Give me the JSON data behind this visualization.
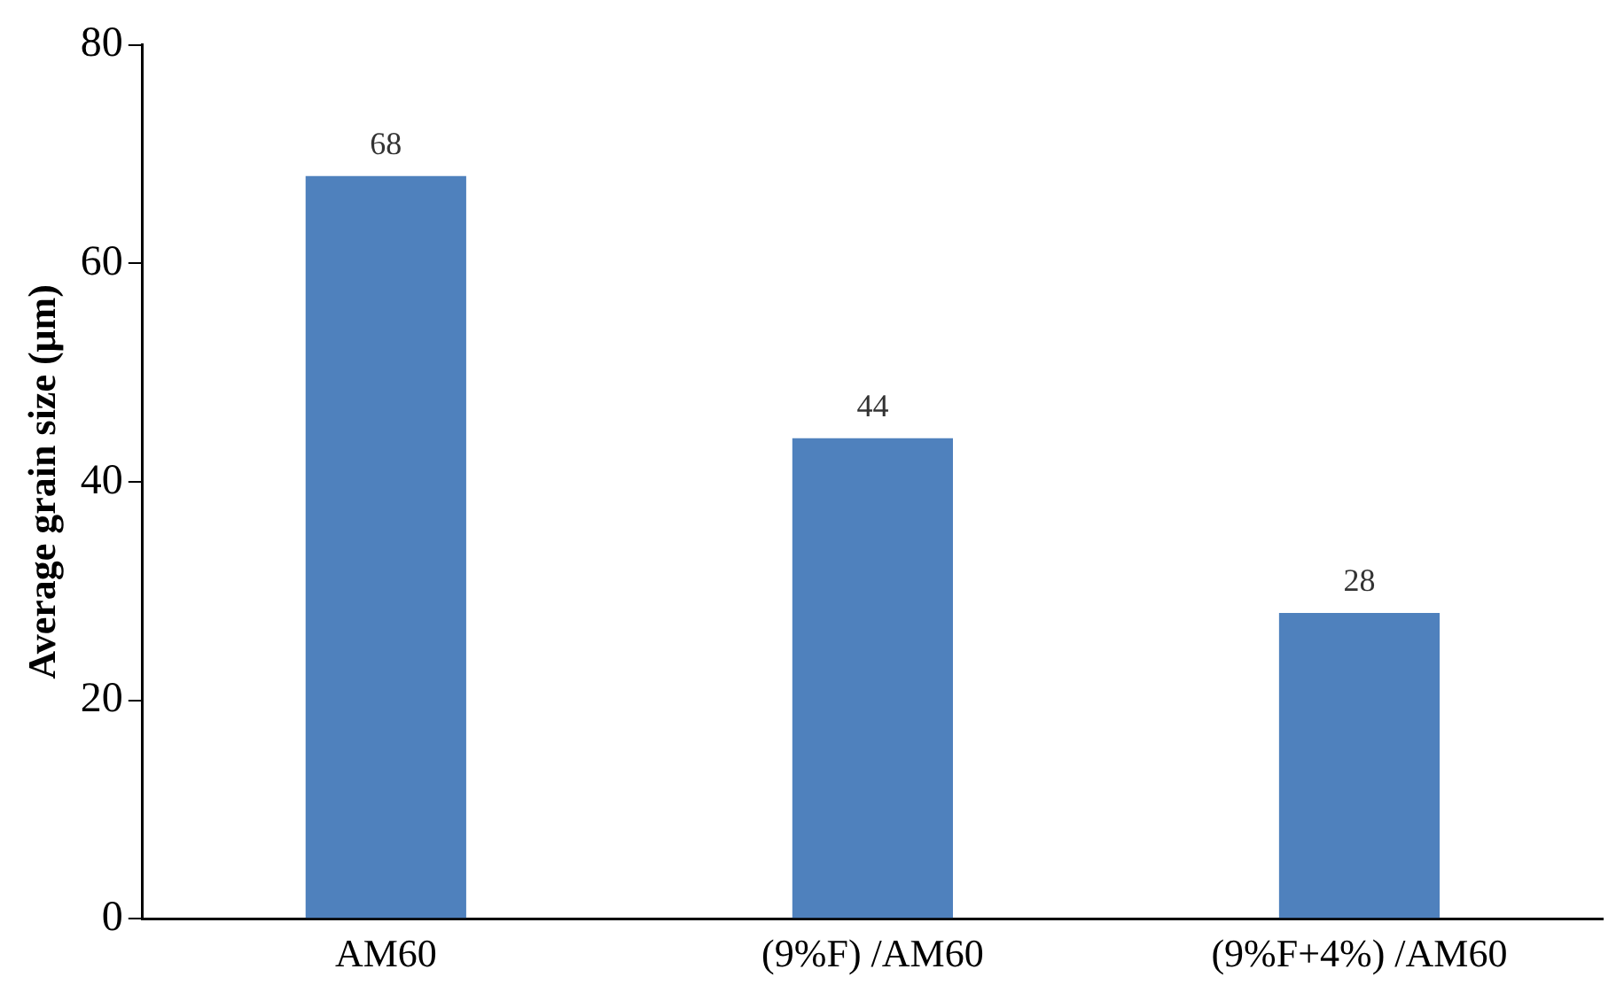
{
  "chart_data": {
    "type": "bar",
    "ylabel": "Average grain size (μm)",
    "categories": [
      "AM60",
      "(9%F) /AM60",
      "(9%F+4%) /AM60"
    ],
    "values": [
      68,
      44,
      28
    ],
    "color": "#4f81bd",
    "ylim": [
      0,
      80
    ],
    "yticks": [
      0,
      20,
      40,
      60,
      80
    ],
    "grid": false,
    "data_labels": true
  }
}
